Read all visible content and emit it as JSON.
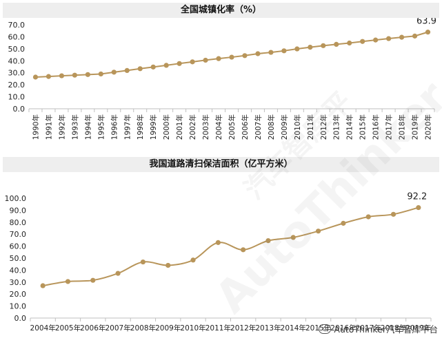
{
  "chart_data": [
    {
      "type": "line",
      "title": "全国城镇化率（%）",
      "categories": [
        "1990年",
        "1991年",
        "1992年",
        "1993年",
        "1994年",
        "1995年",
        "1996年",
        "1997年",
        "1998年",
        "1999年",
        "2000年",
        "2001年",
        "2002年",
        "2003年",
        "2004年",
        "2005年",
        "2006年",
        "2007年",
        "2008年",
        "2009年",
        "2010年",
        "2011年",
        "2012年",
        "2013年",
        "2014年",
        "2015年",
        "2016年",
        "2017年",
        "2018年",
        "2019年",
        "2020年"
      ],
      "values": [
        26.4,
        26.9,
        27.5,
        28.0,
        28.5,
        29.0,
        30.5,
        31.9,
        33.4,
        34.8,
        36.2,
        37.7,
        39.1,
        40.5,
        41.8,
        43.0,
        44.3,
        45.9,
        47.0,
        48.3,
        49.9,
        51.3,
        52.6,
        53.7,
        54.8,
        56.1,
        57.3,
        58.5,
        59.6,
        60.6,
        63.9
      ],
      "ylim": [
        0,
        70
      ],
      "yticks": [
        "0.0",
        "10.0",
        "20.0",
        "30.0",
        "40.0",
        "50.0",
        "60.0",
        "70.0"
      ],
      "last_label": "63.9",
      "grid": false,
      "color": "#b8955a"
    },
    {
      "type": "line",
      "title": "我国道路清扫保洁面积（亿平方米）",
      "categories": [
        "2004年",
        "2005年",
        "2006年",
        "2007年",
        "2008年",
        "2009年",
        "2010年",
        "2011年",
        "2012年",
        "2013年",
        "2014年",
        "2015年",
        "2016年",
        "2017年",
        "2018年",
        "2019年"
      ],
      "values": [
        27.0,
        30.5,
        31.5,
        37.3,
        46.8,
        44.0,
        48.4,
        63.0,
        57.0,
        64.6,
        67.3,
        72.6,
        79.1,
        84.5,
        86.6,
        92.2
      ],
      "ylim": [
        0,
        100
      ],
      "yticks": [
        "0.0",
        "10.0",
        "20.0",
        "30.0",
        "40.0",
        "50.0",
        "60.0",
        "70.0",
        "80.0",
        "90.0",
        "100.0"
      ],
      "last_label": "92.2",
      "grid": false,
      "color": "#b8955a"
    }
  ],
  "watermarks": [
    "AutoThinker",
    "汽车智库平"
  ],
  "footer": {
    "text": "AutoThinker汽车智库平台",
    "icon": "wechat-icon"
  }
}
